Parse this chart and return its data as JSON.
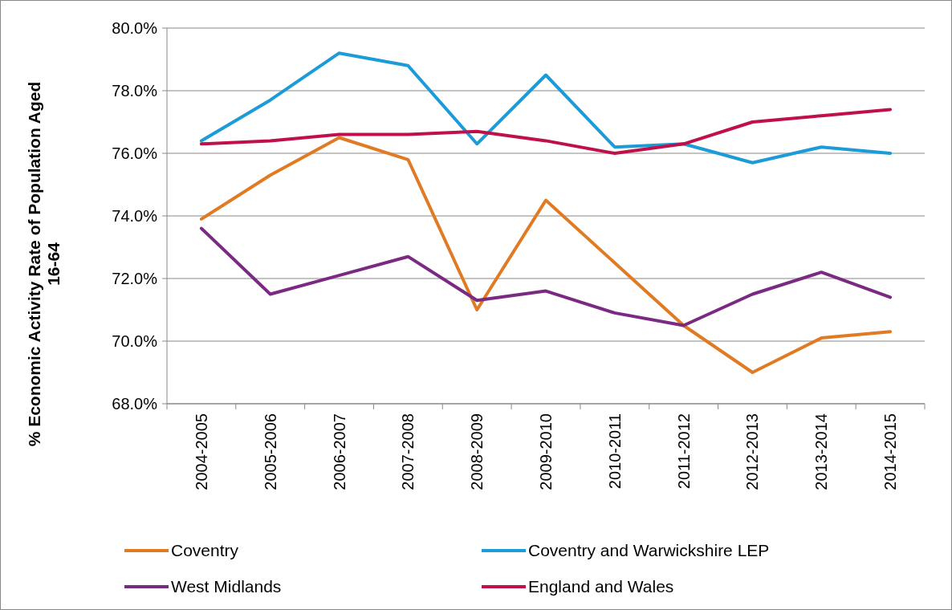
{
  "chart_data": {
    "type": "line",
    "ylabel": "% Economic Activity Rate of Population Aged 16-64",
    "categories": [
      "2004-2005",
      "2005-2006",
      "2006-2007",
      "2007-2008",
      "2008-2009",
      "2009-2010",
      "2010-2011",
      "2011-2012",
      "2012-2013",
      "2013-2014",
      "2014-2015"
    ],
    "series": [
      {
        "name": "Coventry",
        "color": "#e07b24",
        "values": [
          73.9,
          75.3,
          76.5,
          75.8,
          71.0,
          74.5,
          72.5,
          70.5,
          69.0,
          70.1,
          70.3
        ]
      },
      {
        "name": "Coventry and Warwickshire LEP",
        "color": "#1b9bd7",
        "values": [
          76.4,
          77.7,
          79.2,
          78.8,
          76.3,
          78.5,
          76.2,
          76.3,
          75.7,
          76.2,
          76.0
        ]
      },
      {
        "name": "West Midlands",
        "color": "#7b2a83",
        "values": [
          73.6,
          71.5,
          72.1,
          72.7,
          71.3,
          71.6,
          70.9,
          70.5,
          71.5,
          72.2,
          71.4
        ]
      },
      {
        "name": "England and Wales",
        "color": "#c0104a",
        "values": [
          76.3,
          76.4,
          76.6,
          76.6,
          76.7,
          76.4,
          76.0,
          76.3,
          77.0,
          77.2,
          77.4
        ]
      }
    ],
    "ylim": [
      68,
      80
    ],
    "yticks": [
      {
        "value": 68,
        "label": "68.0%"
      },
      {
        "value": 70,
        "label": "70.0%"
      },
      {
        "value": 72,
        "label": "72.0%"
      },
      {
        "value": 74,
        "label": "74.0%"
      },
      {
        "value": 76,
        "label": "76.0%"
      },
      {
        "value": 78,
        "label": "78.0%"
      },
      {
        "value": 80,
        "label": "80.0%"
      }
    ],
    "grid": "y",
    "legend": "bottom",
    "marker": "none",
    "line_style": "solid"
  }
}
